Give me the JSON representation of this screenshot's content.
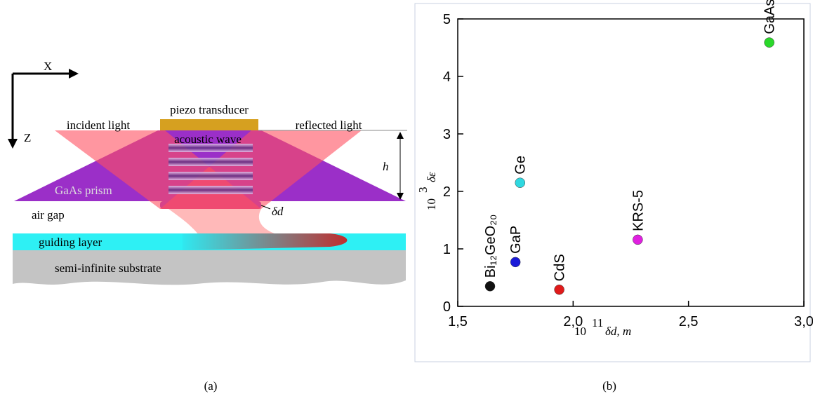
{
  "diagram": {
    "x_axis": "X",
    "z_axis": "Z",
    "transducer": "piezo transducer",
    "incident": "incident light",
    "reflected": "reflected light",
    "acoustic": "acoustic wave",
    "height": "h",
    "prism": "GaAs prism",
    "gap": "air gap",
    "gap_width": "δd",
    "guide": "guiding layer",
    "substrate": "semi-infinite substrate",
    "caption": "(a)"
  },
  "chart_data": {
    "type": "scatter",
    "caption": "(b)",
    "xlabel": {
      "base": "10",
      "exp": "11",
      "text": "δd, m"
    },
    "ylabel": {
      "base": "10",
      "exp": "3",
      "text": "δε"
    },
    "x": [
      1.64,
      1.75,
      1.77,
      1.94,
      2.28,
      2.85
    ],
    "values": [
      0.35,
      0.77,
      2.15,
      0.29,
      1.16,
      4.59
    ],
    "labels": [
      "Bi₁₂GeO₂₀",
      "GaP",
      "Ge",
      "CdS",
      "KRS-5",
      "GaAs"
    ],
    "colors": [
      "#111111",
      "#1a1ad8",
      "#2fd8e0",
      "#e01a1a",
      "#e020e0",
      "#2ad82a"
    ],
    "xlim": [
      1.5,
      3.0
    ],
    "ylim": [
      0,
      5
    ],
    "xticks": [
      {
        "value": 1.5,
        "label": "1,5"
      },
      {
        "value": 2.0,
        "label": "2,0"
      },
      {
        "value": 2.5,
        "label": "2,5"
      },
      {
        "value": 3.0,
        "label": "3,0"
      }
    ],
    "yticks": [
      0,
      1,
      2,
      3,
      4,
      5
    ]
  }
}
